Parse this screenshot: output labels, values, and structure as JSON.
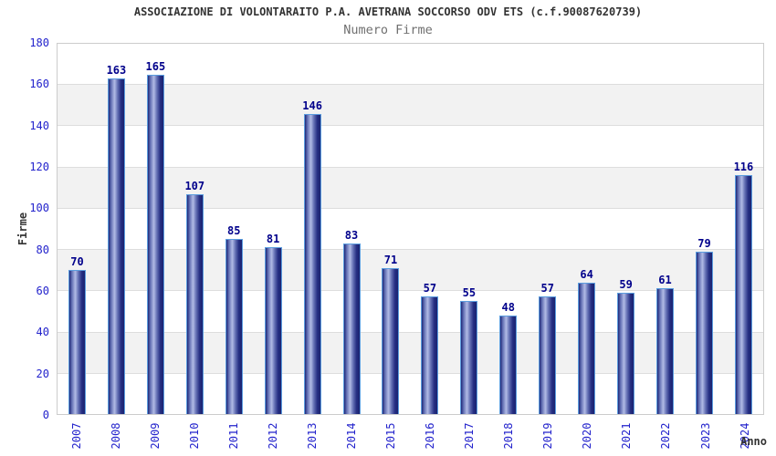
{
  "chart_data": {
    "type": "bar",
    "title": "ASSOCIAZIONE DI VOLONTARAITO P.A. AVETRANA SOCCORSO ODV ETS (c.f.90087620739)",
    "subtitle": "Numero Firme",
    "xlabel": "Anno",
    "ylabel": "Firme",
    "categories": [
      "2007",
      "2008",
      "2009",
      "2010",
      "2011",
      "2012",
      "2013",
      "2014",
      "2015",
      "2016",
      "2017",
      "2018",
      "2019",
      "2020",
      "2021",
      "2022",
      "2023",
      "2024"
    ],
    "values": [
      70,
      163,
      165,
      107,
      85,
      81,
      146,
      83,
      71,
      57,
      55,
      48,
      57,
      64,
      59,
      61,
      79,
      116
    ],
    "ylim": [
      0,
      180
    ],
    "ytick_step": 20,
    "grid": "horizontal gridlines with alternating gray/white bands every 20 units",
    "legend_position": "none"
  },
  "colors": {
    "bar_dark": "#1e2878",
    "bar_light": "#b2bce6",
    "bar_border": "#5b9ddf",
    "tick_label": "#2323cc",
    "value_label": "#00008b",
    "title_text": "#333333",
    "subtitle_text": "#707070",
    "band_gray": "#f2f2f2",
    "grid_line": "#dddddd",
    "plot_border": "#cccccc"
  }
}
